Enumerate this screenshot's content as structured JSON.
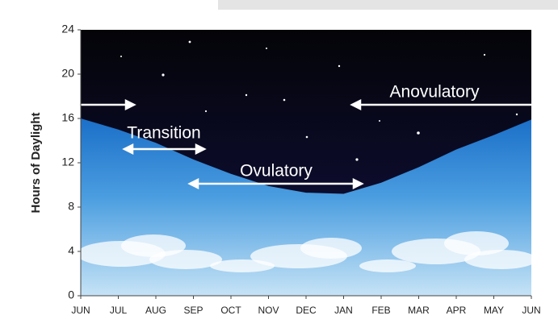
{
  "chart_data": {
    "type": "area",
    "y_label": "Hours of Daylight",
    "categories": [
      "JUN",
      "JUL",
      "AUG",
      "SEP",
      "OCT",
      "NOV",
      "DEC",
      "JAN",
      "FEB",
      "MAR",
      "APR",
      "MAY",
      "JUN"
    ],
    "values": [
      16,
      15,
      13.8,
      12.3,
      11,
      9.9,
      9.3,
      9.2,
      10.2,
      11.6,
      13.2,
      14.5,
      15.9
    ],
    "ylim": [
      0,
      24
    ],
    "yticks": [
      0,
      4,
      8,
      12,
      16,
      20,
      24
    ],
    "annotations": [
      "Anovulatory",
      "Transition",
      "Ovulatory"
    ]
  }
}
